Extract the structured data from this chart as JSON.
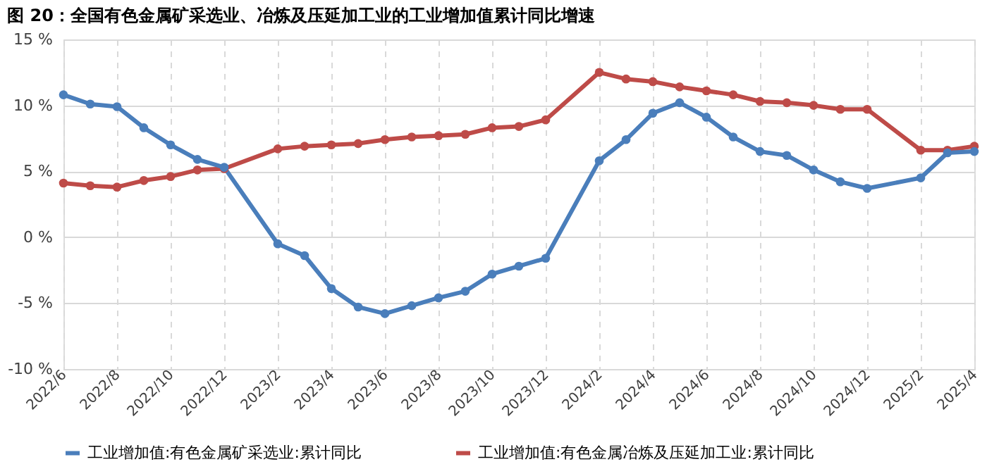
{
  "chart_data": {
    "type": "line",
    "title": "图 20：全国有色金属矿采选业、冶炼及压延加工业的工业增加值累计同比增速",
    "categories": [
      "2022/6",
      null,
      "2022/8",
      null,
      "2022/10",
      null,
      "2022/12",
      null,
      "2023/2",
      null,
      "2023/4",
      null,
      "2023/6",
      null,
      "2023/8",
      null,
      "2023/10",
      null,
      "2023/12",
      null,
      "2024/2",
      null,
      "2024/4",
      null,
      "2024/6",
      null,
      "2024/8",
      null,
      "2024/10",
      null,
      "2024/12",
      null,
      "2025/2",
      null,
      "2025/4"
    ],
    "series": [
      {
        "name": "工业增加值:有色金属矿采选业:累计同比",
        "color": "#4a7ebb",
        "values": [
          10.8,
          10.1,
          9.9,
          8.3,
          7.0,
          5.9,
          5.3,
          null,
          -0.5,
          -1.4,
          -3.9,
          -5.3,
          -5.8,
          -5.2,
          -4.6,
          -4.1,
          -2.8,
          -2.2,
          -1.6,
          null,
          5.8,
          7.4,
          9.4,
          10.2,
          9.1,
          7.6,
          6.5,
          6.2,
          5.1,
          4.2,
          3.7,
          null,
          4.5,
          6.4,
          6.5
        ]
      },
      {
        "name": "工业增加值:有色金属冶炼及压延加工业:累计同比",
        "color": "#be4b48",
        "values": [
          4.1,
          3.9,
          3.8,
          4.3,
          4.6,
          5.1,
          5.2,
          null,
          6.7,
          6.9,
          7.0,
          7.1,
          7.4,
          7.6,
          7.7,
          7.8,
          8.3,
          8.4,
          8.9,
          null,
          12.5,
          12.0,
          11.8,
          11.4,
          11.1,
          10.8,
          10.3,
          10.2,
          10.0,
          9.7,
          9.7,
          null,
          6.6,
          6.6,
          6.9
        ]
      }
    ],
    "ylim": [
      -10,
      15
    ],
    "yticks": [
      {
        "value": -10,
        "label": "-10 %"
      },
      {
        "value": -5,
        "label": "-5 %"
      },
      {
        "value": 0,
        "label": "0 %"
      },
      {
        "value": 5,
        "label": "5 %"
      },
      {
        "value": 10,
        "label": "10 %"
      },
      {
        "value": 15,
        "label": "15 %"
      }
    ],
    "grid": true,
    "legend": "bottom",
    "marker": "circle",
    "line_style": "solid"
  }
}
